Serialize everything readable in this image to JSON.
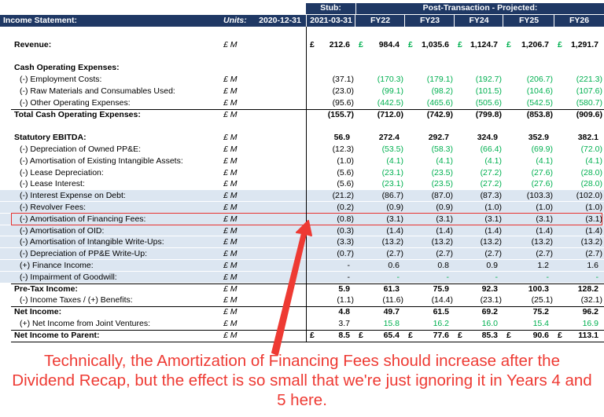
{
  "header": {
    "title": "Income Statement:",
    "units": "Units:",
    "groups": [
      "Stub:",
      "Post-Transaction - Projected:"
    ],
    "periods": [
      "2020-12-31",
      "2021-03-31",
      "FY22",
      "FY23",
      "FY24",
      "FY25",
      "FY26"
    ]
  },
  "highlight_color": "#e8312f",
  "rows": [
    {
      "label": "Revenue:",
      "unit": "£ M",
      "bold": true,
      "currency": "£",
      "currency_color": "#00b050",
      "values": [
        "212.6",
        "984.4",
        "1,035.6",
        "1,124.7",
        "1,206.7",
        "1,291.7"
      ]
    },
    {
      "label": "Cash Operating Expenses:",
      "bold": true,
      "section_start": true
    },
    {
      "label": "(-) Employment Costs:",
      "unit": "£ M",
      "color": "#00b050",
      "values": [
        "(37.1)",
        "(170.3)",
        "(179.1)",
        "(192.7)",
        "(206.7)",
        "(221.3)"
      ]
    },
    {
      "label": "(-) Raw Materials and Consumables Used:",
      "unit": "£ M",
      "color": "#00b050",
      "values": [
        "(23.0)",
        "(99.1)",
        "(98.2)",
        "(101.5)",
        "(104.6)",
        "(107.6)"
      ]
    },
    {
      "label": "(-) Other Operating Expenses:",
      "unit": "£ M",
      "color": "#00b050",
      "values": [
        "(95.6)",
        "(442.5)",
        "(465.6)",
        "(505.6)",
        "(542.5)",
        "(580.7)"
      ]
    },
    {
      "label": "Total Cash Operating Expenses:",
      "unit": "£ M",
      "bold": true,
      "border": "top",
      "values": [
        "(155.7)",
        "(712.0)",
        "(742.9)",
        "(799.8)",
        "(853.8)",
        "(909.6)"
      ]
    },
    {
      "label": "Statutory EBITDA:",
      "unit": "£ M",
      "bold": true,
      "section_start": true,
      "values": [
        "56.9",
        "272.4",
        "292.7",
        "324.9",
        "352.9",
        "382.1"
      ]
    },
    {
      "label": "(-) Depreciation of Owned PP&E:",
      "unit": "£ M",
      "color": "#00b050",
      "values": [
        "(12.3)",
        "(53.5)",
        "(58.3)",
        "(66.4)",
        "(69.9)",
        "(72.0)"
      ]
    },
    {
      "label": "(-) Amortisation of Existing Intangible Assets:",
      "unit": "£ M",
      "color": "#00b050",
      "values": [
        "(1.0)",
        "(4.1)",
        "(4.1)",
        "(4.1)",
        "(4.1)",
        "(4.1)"
      ]
    },
    {
      "label": "(-) Lease Depreciation:",
      "unit": "£ M",
      "color": "#00b050",
      "values": [
        "(5.6)",
        "(23.1)",
        "(23.5)",
        "(27.2)",
        "(27.6)",
        "(28.0)"
      ]
    },
    {
      "label": "(-) Lease Interest:",
      "unit": "£ M",
      "color": "#00b050",
      "values": [
        "(5.6)",
        "(23.1)",
        "(23.5)",
        "(27.2)",
        "(27.6)",
        "(28.0)"
      ]
    },
    {
      "label": "(-) Interest Expense on Debt:",
      "unit": "£ M",
      "shaded": true,
      "values": [
        "(21.2)",
        "(86.7)",
        "(87.0)",
        "(87.3)",
        "(103.3)",
        "(102.0)"
      ]
    },
    {
      "label": "(-) Revolver Fees:",
      "unit": "£ M",
      "shaded": true,
      "values": [
        "(0.2)",
        "(0.9)",
        "(0.9)",
        "(1.0)",
        "(1.0)",
        "(1.0)"
      ]
    },
    {
      "label": "(-) Amortisation of Financing Fees:",
      "unit": "£ M",
      "shaded": true,
      "highlight": true,
      "values": [
        "(0.8)",
        "(3.1)",
        "(3.1)",
        "(3.1)",
        "(3.1)",
        "(3.1)"
      ]
    },
    {
      "label": "(-) Amortisation of OID:",
      "unit": "£ M",
      "shaded": true,
      "values": [
        "(0.3)",
        "(1.4)",
        "(1.4)",
        "(1.4)",
        "(1.4)",
        "(1.4)"
      ]
    },
    {
      "label": "(-) Amortisation of Intangible Write-Ups:",
      "unit": "£ M",
      "shaded": true,
      "values": [
        "(3.3)",
        "(13.2)",
        "(13.2)",
        "(13.2)",
        "(13.2)",
        "(13.2)"
      ]
    },
    {
      "label": "(-) Depreciation of PP&E Write-Up:",
      "unit": "£ M",
      "shaded": true,
      "values": [
        "(0.7)",
        "(2.7)",
        "(2.7)",
        "(2.7)",
        "(2.7)",
        "(2.7)"
      ]
    },
    {
      "label": "(+) Finance Income:",
      "unit": "£ M",
      "shaded": true,
      "values": [
        "-",
        "0.6",
        "0.8",
        "0.9",
        "1.2",
        "1.6"
      ]
    },
    {
      "label": "(-) Impairment of Goodwill:",
      "unit": "£ M",
      "shaded": true,
      "color": "#00b050",
      "values": [
        "-",
        "-",
        "-",
        "-",
        "-",
        "-"
      ]
    },
    {
      "label": "Pre-Tax Income:",
      "unit": "£ M",
      "bold": true,
      "border": "top",
      "values": [
        "5.9",
        "61.3",
        "75.9",
        "92.3",
        "100.3",
        "128.2"
      ]
    },
    {
      "label": "(-) Income Taxes / (+) Benefits:",
      "unit": "£ M",
      "values": [
        "(1.1)",
        "(11.6)",
        "(14.4)",
        "(23.1)",
        "(25.1)",
        "(32.1)"
      ]
    },
    {
      "label": "Net Income:",
      "unit": "£ M",
      "bold": true,
      "border": "top",
      "values": [
        "4.8",
        "49.7",
        "61.5",
        "69.2",
        "75.2",
        "96.2"
      ]
    },
    {
      "label": "(+) Net Income from Joint Ventures:",
      "unit": "£ M",
      "color": "#00b050",
      "values": [
        "3.7",
        "15.8",
        "16.2",
        "16.0",
        "15.4",
        "16.9"
      ]
    },
    {
      "label": "Net Income to Parent:",
      "unit": "£ M",
      "bold": true,
      "border": "top",
      "currency": "£",
      "values": [
        "8.5",
        "65.4",
        "77.6",
        "85.3",
        "90.6",
        "113.1"
      ]
    }
  ],
  "annotation": {
    "text": "Technically, the Amortization of Financing Fees should increase after the Dividend Recap, but the effect is so small that we're just ignoring it in Years 4 and 5 here.",
    "color": "#ee3a33"
  }
}
